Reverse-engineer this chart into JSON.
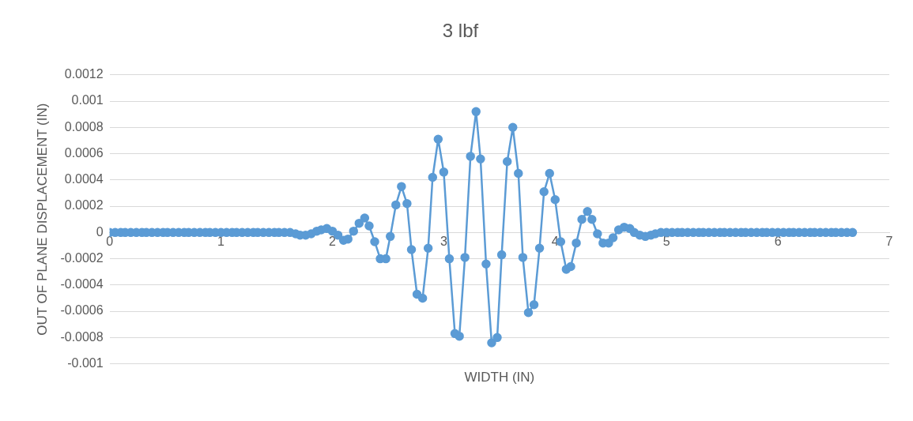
{
  "chart_data": {
    "type": "line",
    "title": "3 lbf",
    "xlabel": "WIDTH (IN)",
    "ylabel": "OUT OF PLANE DISPLACEMENT (IN)",
    "x": [
      0,
      0.05,
      0.1,
      0.14,
      0.19,
      0.24,
      0.29,
      0.33,
      0.38,
      0.43,
      0.48,
      0.52,
      0.57,
      0.62,
      0.67,
      0.71,
      0.76,
      0.81,
      0.86,
      0.9,
      0.95,
      1,
      1.05,
      1.1,
      1.14,
      1.19,
      1.24,
      1.29,
      1.33,
      1.38,
      1.43,
      1.48,
      1.52,
      1.57,
      1.62,
      1.67,
      1.71,
      1.76,
      1.81,
      1.86,
      1.9,
      1.95,
      2,
      2.05,
      2.1,
      2.14,
      2.19,
      2.24,
      2.29,
      2.33,
      2.38,
      2.43,
      2.48,
      2.52,
      2.57,
      2.62,
      2.67,
      2.71,
      2.76,
      2.81,
      2.86,
      2.9,
      2.95,
      3,
      3.05,
      3.1,
      3.14,
      3.19,
      3.24,
      3.29,
      3.33,
      3.38,
      3.43,
      3.48,
      3.52,
      3.57,
      3.62,
      3.67,
      3.71,
      3.76,
      3.81,
      3.86,
      3.9,
      3.95,
      4,
      4.05,
      4.1,
      4.14,
      4.19,
      4.24,
      4.29,
      4.33,
      4.38,
      4.43,
      4.48,
      4.52,
      4.57,
      4.62,
      4.67,
      4.71,
      4.76,
      4.81,
      4.86,
      4.9,
      4.95,
      5,
      5.05,
      5.1,
      5.14,
      5.19,
      5.24,
      5.29,
      5.33,
      5.38,
      5.43,
      5.48,
      5.52,
      5.57,
      5.62,
      5.67,
      5.71,
      5.76,
      5.81,
      5.86,
      5.9,
      5.95,
      6,
      6.05,
      6.1,
      6.14,
      6.19,
      6.24,
      6.29,
      6.33,
      6.38,
      6.43,
      6.48,
      6.52,
      6.57,
      6.62,
      6.67
    ],
    "series": [
      {
        "color": "#5b9bd5",
        "values": [
          0,
          0,
          0,
          0,
          0,
          0,
          0,
          0,
          0,
          0,
          0,
          0,
          0,
          0,
          0,
          0,
          0,
          0,
          0,
          0,
          0,
          0,
          0,
          0,
          0,
          0,
          0,
          0,
          0,
          0,
          0,
          0,
          0,
          0,
          0,
          -1e-05,
          -2e-05,
          -2e-05,
          -1e-05,
          1e-05,
          2e-05,
          3e-05,
          1e-05,
          -2e-05,
          -6e-05,
          -5e-05,
          1e-05,
          7e-05,
          0.00011,
          5e-05,
          -7e-05,
          -0.0002,
          -0.0002,
          -3e-05,
          0.00021,
          0.00035,
          0.00022,
          -0.00013,
          -0.00047,
          -0.0005,
          -0.00012,
          0.00042,
          0.00071,
          0.00046,
          -0.0002,
          -0.00077,
          -0.00079,
          -0.00019,
          0.00058,
          0.00092,
          0.00056,
          -0.00024,
          -0.00084,
          -0.0008,
          -0.00017,
          0.00054,
          0.0008,
          0.00045,
          -0.00019,
          -0.00061,
          -0.00055,
          -0.00012,
          0.00031,
          0.00045,
          0.00025,
          -7e-05,
          -0.00028,
          -0.00026,
          -8e-05,
          0.0001,
          0.00016,
          0.0001,
          -1e-05,
          -8e-05,
          -8e-05,
          -4e-05,
          2e-05,
          4e-05,
          3e-05,
          0,
          -2e-05,
          -3e-05,
          -2e-05,
          -1e-05,
          0,
          0,
          0,
          0,
          0,
          0,
          0,
          0,
          0,
          0,
          0,
          0,
          0,
          0,
          0,
          0,
          0,
          0,
          0,
          0,
          0,
          0,
          0,
          0,
          0,
          0,
          0,
          0,
          0,
          0,
          0,
          0,
          0,
          0,
          0,
          0,
          0
        ]
      }
    ],
    "xlim": [
      0,
      7
    ],
    "xticks": [
      0,
      1,
      2,
      3,
      4,
      5,
      6,
      7
    ],
    "ylim": [
      -0.001,
      0.0012
    ],
    "yticks": [
      -0.001,
      -0.0008,
      -0.0006,
      -0.0004,
      -0.0002,
      0,
      0.0002,
      0.0004,
      0.0006,
      0.0008,
      0.001,
      0.0012
    ],
    "grid": "y",
    "marker": "circle",
    "line_style": "solid",
    "legend": false
  }
}
